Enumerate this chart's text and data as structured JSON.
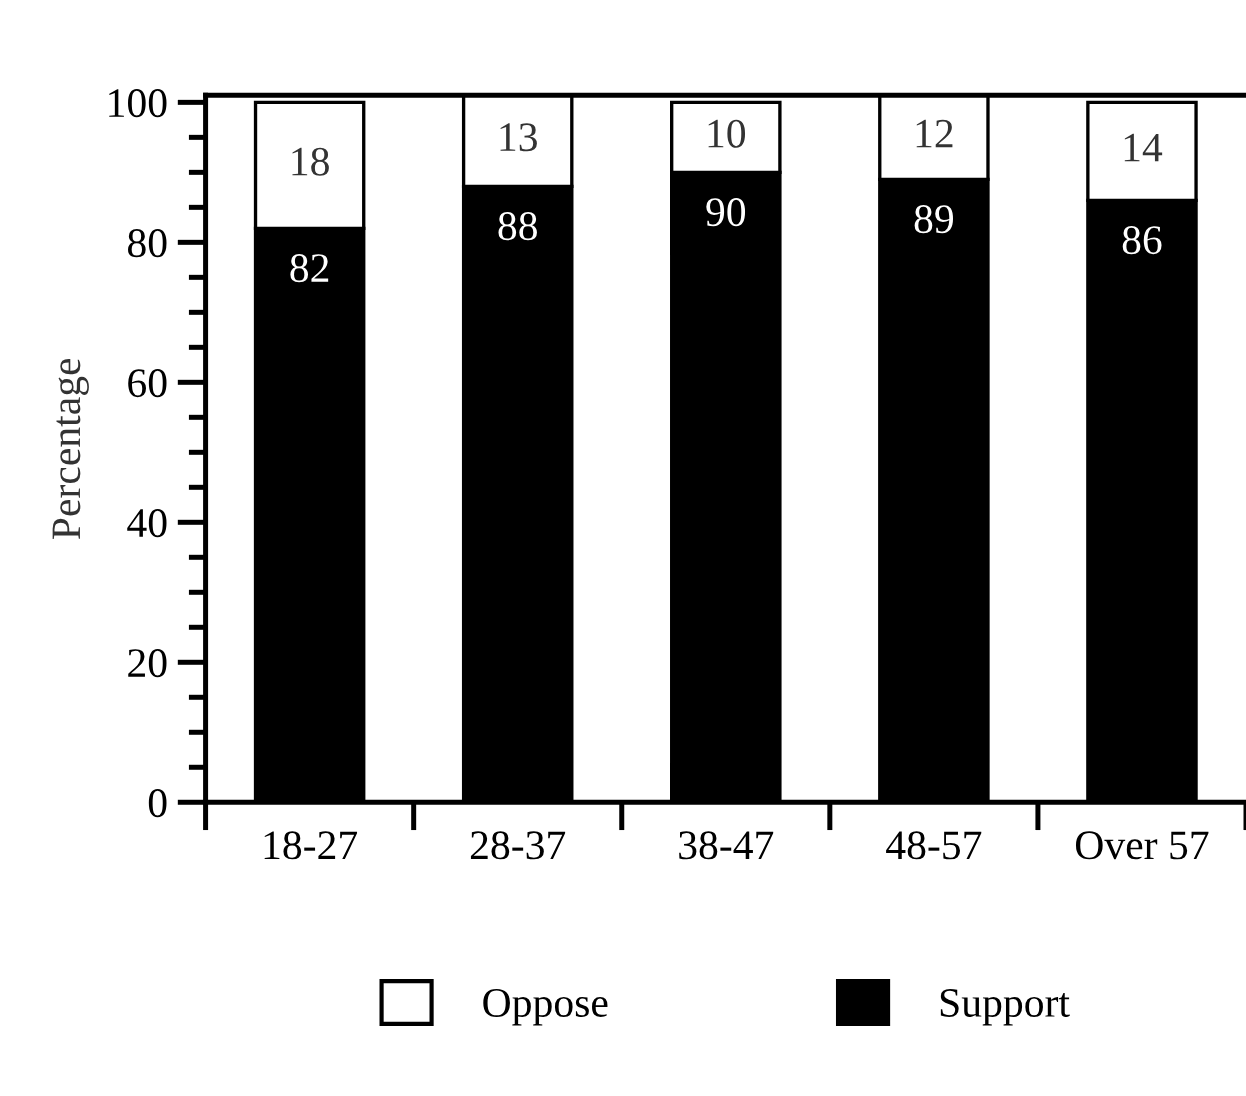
{
  "chart_data": {
    "type": "bar",
    "stacked": true,
    "ylabel": "Percentage",
    "categories": [
      "18-27",
      "28-37",
      "38-47",
      "48-57",
      "Over 57"
    ],
    "series": [
      {
        "name": "Support",
        "color": "#000000",
        "values": [
          82,
          88,
          90,
          89,
          86
        ]
      },
      {
        "name": "Oppose",
        "color": "#ffffff",
        "values": [
          18,
          13,
          10,
          12,
          14
        ]
      }
    ],
    "data_labels": true,
    "ylim": [
      0,
      101
    ],
    "yticks": [
      0,
      20,
      40,
      60,
      80,
      100
    ],
    "grid": false,
    "legend": "bottom"
  }
}
